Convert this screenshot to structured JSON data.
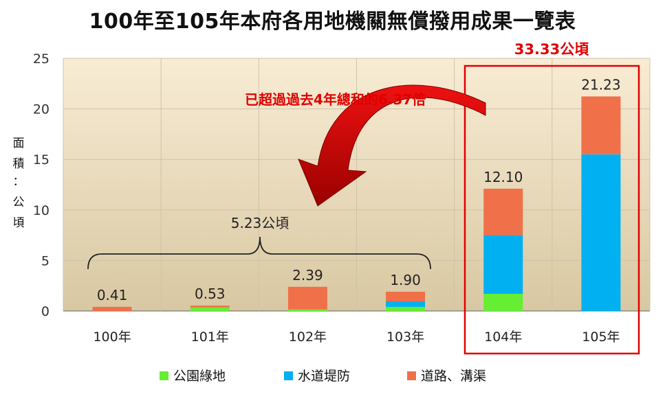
{
  "title": "100年至105年本府各用地機關無償撥用成果一覽表",
  "y_axis_label": [
    "面",
    "積",
    "：",
    "公",
    "頃"
  ],
  "annotations": {
    "total_highlight": "33.33公頃",
    "arrow_text": "已超過過去4年總和的6.37倍",
    "brace_total": "5.23公頃"
  },
  "colors": {
    "green": "#66ee33",
    "blue": "#00b0f0",
    "orange": "#f0704a",
    "highlight": "#e00000",
    "plot_bg_top": "#f8ecd4",
    "plot_bg_bottom": "#d8c8a2"
  },
  "chart_data": {
    "type": "bar",
    "stacked": true,
    "title": "100年至105年本府各用地機關無償撥用成果一覽表",
    "ylabel": "面積：公頃",
    "xlabel": "",
    "categories": [
      "100年",
      "101年",
      "102年",
      "103年",
      "104年",
      "105年"
    ],
    "ylim": [
      0,
      25
    ],
    "yticks": [
      0,
      5,
      10,
      15,
      20,
      25
    ],
    "grid": true,
    "legend_position": "bottom",
    "series": [
      {
        "name": "公園綠地",
        "color": "#66ee33",
        "values": [
          0.0,
          0.35,
          0.15,
          0.4,
          1.7,
          0.0
        ]
      },
      {
        "name": "水道堤防",
        "color": "#00b0f0",
        "values": [
          0.0,
          0.0,
          0.0,
          0.55,
          5.8,
          15.5
        ]
      },
      {
        "name": "道路、溝渠",
        "color": "#f0704a",
        "values": [
          0.41,
          0.18,
          2.24,
          0.95,
          4.6,
          5.73
        ]
      }
    ],
    "totals": [
      "0.41",
      "0.53",
      "2.39",
      "1.90",
      "12.10",
      "21.23"
    ]
  }
}
